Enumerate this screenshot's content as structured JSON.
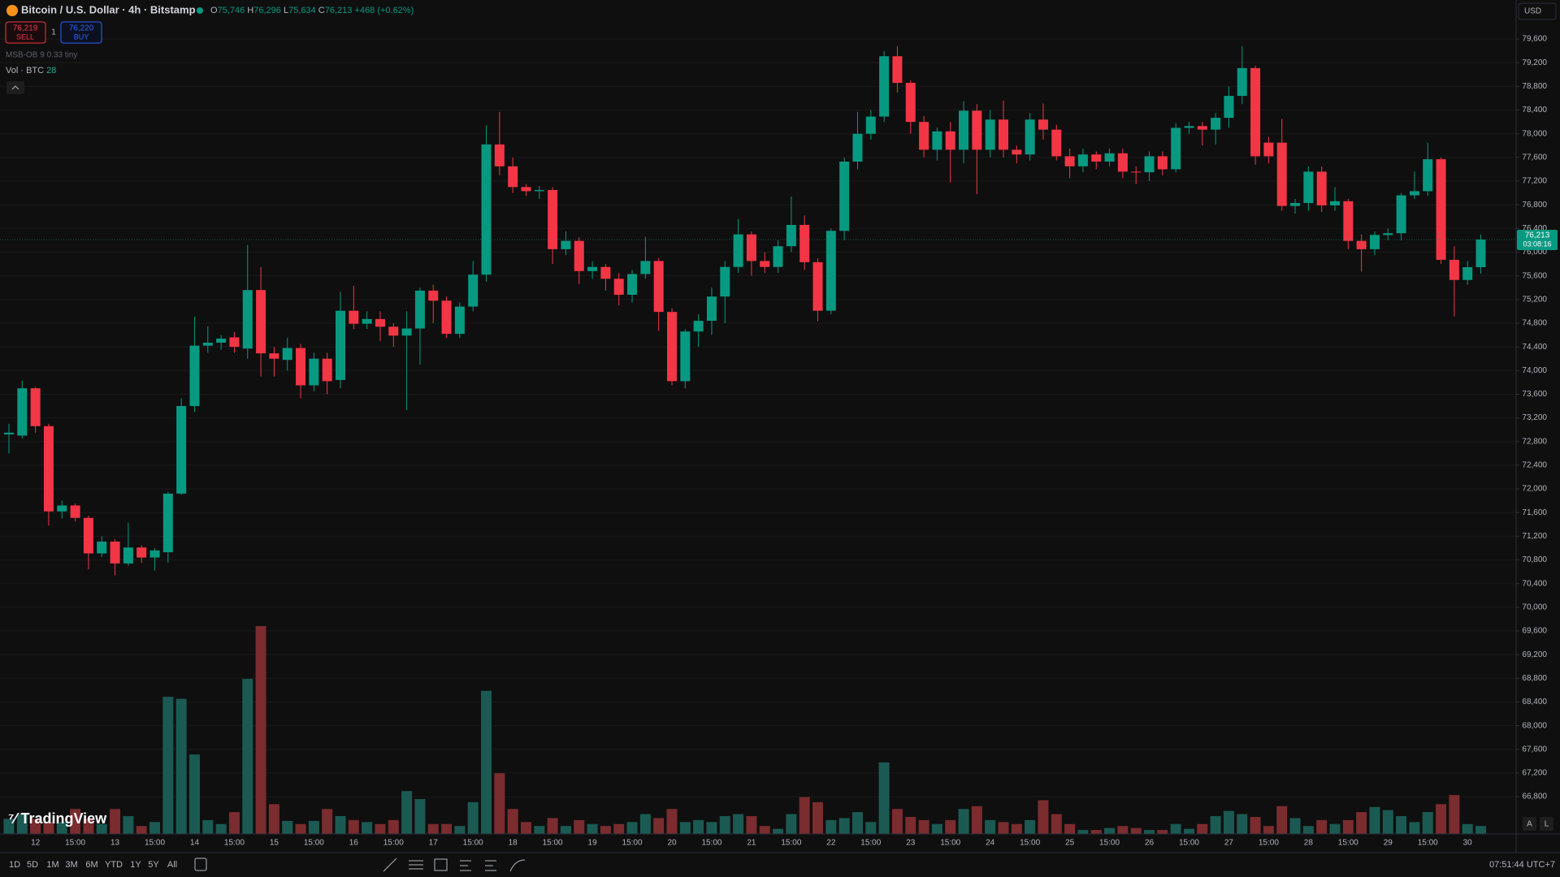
{
  "header": {
    "symbol": "Bitcoin / U.S. Dollar · 4h · Bitstamp",
    "o_key": "O",
    "o": "75,746",
    "h_key": "H",
    "h": "76,296",
    "l_key": "L",
    "l": "75,634",
    "c_key": "C",
    "c": "76,213",
    "change": "+468 (+0.62%)"
  },
  "trade": {
    "sell_price": "76,219",
    "sell": "SELL",
    "spread": "1",
    "buy_price": "76,220",
    "buy": "BUY"
  },
  "indicators": {
    "msb": "MSB-OB 9 0.33 tiny",
    "vol": "Vol · BTC"
  },
  "currency": "USD",
  "brand": "TradingView",
  "scale_buttons": [
    "A",
    "L"
  ],
  "ranges": [
    "1D",
    "5D",
    "1M",
    "3M",
    "6M",
    "YTD",
    "1Y",
    "5Y",
    "All"
  ],
  "clock": "07:51:44 UTC+7",
  "chart_data": {
    "type": "candlestick",
    "categories": [
      null,
      null,
      "12",
      null,
      null,
      "15:00",
      null,
      null,
      "13",
      null,
      null,
      "15:00",
      null,
      null,
      "14",
      null,
      null,
      "15:00",
      null,
      null,
      "15",
      null,
      null,
      "15:00",
      null,
      null,
      "16",
      null,
      null,
      "15:00",
      null,
      null,
      "17",
      null,
      null,
      "15:00",
      null,
      null,
      "18",
      null,
      null,
      "15:00",
      null,
      null,
      "19",
      null,
      null,
      "15:00",
      null,
      null,
      "20",
      null,
      null,
      "15:00",
      null,
      null,
      "21",
      null,
      null,
      "15:00",
      null,
      null,
      "22",
      null,
      null,
      "15:00",
      null,
      null,
      "23",
      null,
      null,
      "15:00",
      null,
      null,
      "24",
      null,
      null,
      "15:00",
      null,
      null,
      "25",
      null,
      null,
      "15:00",
      null,
      null,
      "26",
      null,
      null,
      "15:00",
      null,
      null,
      "27",
      null,
      null,
      "15:00",
      null,
      null,
      "28",
      null,
      null,
      "15:00",
      null,
      null,
      "29",
      null,
      null,
      "15:00",
      null,
      null,
      "30",
      null
    ],
    "open": [
      72920,
      72900,
      73700,
      73060,
      71620,
      71720,
      71510,
      70910,
      71110,
      70740,
      71010,
      70840,
      70930,
      71920,
      73400,
      74420,
      74470,
      74560,
      74370,
      75360,
      74290,
      74180,
      74380,
      73750,
      74200,
      73840,
      75010,
      74790,
      74870,
      74740,
      74590,
      74710,
      75350,
      75180,
      74620,
      75080,
      75620,
      77820,
      77450,
      77100,
      77030,
      77050,
      76050,
      76190,
      75680,
      75750,
      75550,
      75280,
      75630,
      75850,
      74990,
      73820,
      74660,
      74840,
      75250,
      75750,
      76300,
      75850,
      75750,
      76100,
      76460,
      75830,
      75010,
      76360,
      77530,
      78000,
      78290,
      79310,
      78860,
      78200,
      77730,
      78040,
      77730,
      78390,
      77730,
      78240,
      77730,
      77650,
      78240,
      78070,
      77620,
      77450,
      77650,
      77530,
      77670,
      77360,
      77350,
      77620,
      77400,
      78100,
      78130,
      78070,
      78270,
      78640,
      79110,
      77850,
      77850,
      76780,
      76830,
      77360,
      76790,
      76860,
      76190,
      76050,
      76290,
      76320,
      76960,
      77030,
      77570,
      75870,
      75530,
      75746
    ],
    "high": [
      73100,
      73830,
      73720,
      73100,
      71800,
      71750,
      71550,
      71200,
      71150,
      71430,
      71050,
      71000,
      71950,
      73530,
      74910,
      74750,
      74600,
      74650,
      76120,
      75750,
      74400,
      74550,
      74450,
      74300,
      74300,
      75330,
      75430,
      75000,
      75000,
      74800,
      75000,
      75400,
      75450,
      75250,
      75150,
      75850,
      78140,
      78370,
      77600,
      77150,
      77120,
      77100,
      76350,
      76250,
      75850,
      75800,
      75650,
      75700,
      76260,
      75900,
      75050,
      74700,
      74950,
      75400,
      75850,
      76560,
      76350,
      76000,
      76200,
      76940,
      76620,
      75900,
      76400,
      77600,
      78370,
      78400,
      79400,
      79480,
      78900,
      78300,
      78100,
      78200,
      78550,
      78500,
      78400,
      78560,
      77800,
      78350,
      78510,
      78150,
      77750,
      77750,
      77700,
      77750,
      77750,
      77450,
      77700,
      77700,
      78180,
      78200,
      78200,
      78350,
      78800,
      79480,
      79150,
      77950,
      78250,
      76900,
      77450,
      77450,
      77100,
      76900,
      76300,
      76350,
      76400,
      77000,
      77360,
      77850,
      77600,
      76100,
      75850,
      76296
    ],
    "low": [
      72600,
      72850,
      72950,
      71380,
      71500,
      71450,
      70640,
      70850,
      70540,
      70700,
      70750,
      70620,
      70750,
      71900,
      73300,
      74300,
      74350,
      74300,
      74200,
      73900,
      73900,
      74000,
      73530,
      73650,
      73600,
      73700,
      74700,
      74700,
      74500,
      74400,
      73330,
      74100,
      74800,
      74550,
      74550,
      75000,
      75500,
      77300,
      77000,
      76950,
      76900,
      75800,
      75950,
      75460,
      75550,
      75350,
      75100,
      75150,
      75550,
      74670,
      73750,
      73700,
      74400,
      74600,
      74800,
      75650,
      75600,
      75650,
      75650,
      76000,
      75700,
      74830,
      74950,
      76200,
      77400,
      77900,
      78200,
      78700,
      78000,
      77600,
      77550,
      77180,
      77500,
      76980,
      77600,
      77600,
      77500,
      77550,
      77900,
      77550,
      77250,
      77350,
      77400,
      77450,
      77250,
      77150,
      77200,
      77300,
      77350,
      78000,
      77800,
      77820,
      78100,
      78500,
      77480,
      77500,
      76700,
      76650,
      76700,
      76680,
      76700,
      76050,
      75670,
      75950,
      76200,
      76200,
      76900,
      76950,
      75800,
      74910,
      75450,
      75634
    ],
    "close": [
      72950,
      73700,
      73060,
      71620,
      71720,
      71510,
      70910,
      71110,
      70740,
      71010,
      70840,
      70960,
      71920,
      73400,
      74420,
      74470,
      74540,
      74400,
      75360,
      74290,
      74200,
      74380,
      73750,
      74200,
      73820,
      75010,
      74790,
      74870,
      74740,
      74590,
      74710,
      75350,
      75180,
      74620,
      75080,
      75620,
      77820,
      77450,
      77100,
      77030,
      77050,
      76050,
      76190,
      75680,
      75750,
      75550,
      75280,
      75630,
      75850,
      74990,
      73820,
      74660,
      74840,
      75250,
      75750,
      76300,
      75850,
      75750,
      76100,
      76460,
      75830,
      75010,
      76360,
      77530,
      78000,
      78290,
      79310,
      78860,
      78200,
      77730,
      78040,
      77730,
      78390,
      77730,
      78240,
      77730,
      77650,
      78240,
      78070,
      77620,
      77450,
      77650,
      77530,
      77670,
      77360,
      77350,
      77620,
      77400,
      78100,
      78130,
      78070,
      78270,
      78640,
      79110,
      77620,
      77620,
      76780,
      76830,
      77360,
      76790,
      76860,
      76190,
      76050,
      76290,
      76320,
      76960,
      77030,
      77570,
      75870,
      75530,
      75746,
      76213
    ],
    "volume": [
      53,
      70,
      53,
      42,
      42,
      88,
      53,
      35,
      88,
      63,
      28,
      42,
      483,
      476,
      280,
      49,
      35,
      77,
      546,
      732,
      105,
      46,
      35,
      46,
      88,
      63,
      49,
      42,
      35,
      49,
      151,
      123,
      35,
      35,
      28,
      112,
      504,
      214,
      88,
      42,
      28,
      56,
      28,
      49,
      35,
      28,
      35,
      42,
      70,
      56,
      88,
      42,
      49,
      42,
      63,
      70,
      63,
      28,
      18,
      70,
      130,
      112,
      49,
      56,
      77,
      42,
      252,
      88,
      60,
      49,
      35,
      49,
      88,
      98,
      49,
      42,
      35,
      49,
      119,
      70,
      35,
      14,
      14,
      21,
      28,
      21,
      14,
      14,
      35,
      18,
      35,
      63,
      81,
      70,
      60,
      28,
      98,
      56,
      28,
      49,
      35,
      49,
      77,
      95,
      84,
      63,
      42,
      77,
      105,
      137,
      35,
      28
    ],
    "up_color": "#089981",
    "down_color": "#f23645",
    "volume_up_color": "#1b5a52",
    "volume_down_color": "#7a2c2e",
    "ylim": [
      66170,
      80260
    ],
    "yticks": [
      {
        "value": 66800,
        "label": "66,800"
      },
      {
        "value": 67200,
        "label": "67,200"
      },
      {
        "value": 67600,
        "label": "67,600"
      },
      {
        "value": 68000,
        "label": "68,000"
      },
      {
        "value": 68400,
        "label": "68,400"
      },
      {
        "value": 68800,
        "label": "68,800"
      },
      {
        "value": 69200,
        "label": "69,200"
      },
      {
        "value": 69600,
        "label": "69,600"
      },
      {
        "value": 70000,
        "label": "70,000"
      },
      {
        "value": 70400,
        "label": "70,400"
      },
      {
        "value": 70800,
        "label": "70,800"
      },
      {
        "value": 71200,
        "label": "71,200"
      },
      {
        "value": 71600,
        "label": "71,600"
      },
      {
        "value": 72000,
        "label": "72,000"
      },
      {
        "value": 72400,
        "label": "72,400"
      },
      {
        "value": 72800,
        "label": "72,800"
      },
      {
        "value": 73200,
        "label": "73,200"
      },
      {
        "value": 73600,
        "label": "73,600"
      },
      {
        "value": 74000,
        "label": "74,000"
      },
      {
        "value": 74400,
        "label": "74,400"
      },
      {
        "value": 74800,
        "label": "74,800"
      },
      {
        "value": 75200,
        "label": "75,200"
      },
      {
        "value": 75600,
        "label": "75,600"
      },
      {
        "value": 76000,
        "label": "76,000"
      },
      {
        "value": 76400,
        "label": "76,400"
      },
      {
        "value": 76800,
        "label": "76,800"
      },
      {
        "value": 77200,
        "label": "77,200"
      },
      {
        "value": 77600,
        "label": "77,600"
      },
      {
        "value": 78000,
        "label": "78,000"
      },
      {
        "value": 78400,
        "label": "78,400"
      },
      {
        "value": 78800,
        "label": "78,800"
      },
      {
        "value": 79200,
        "label": "79,200"
      },
      {
        "value": 79600,
        "label": "79,600"
      }
    ],
    "grid": true,
    "last_price": {
      "value": 76213,
      "label": "76,213"
    },
    "countdown": "03:08:16"
  }
}
